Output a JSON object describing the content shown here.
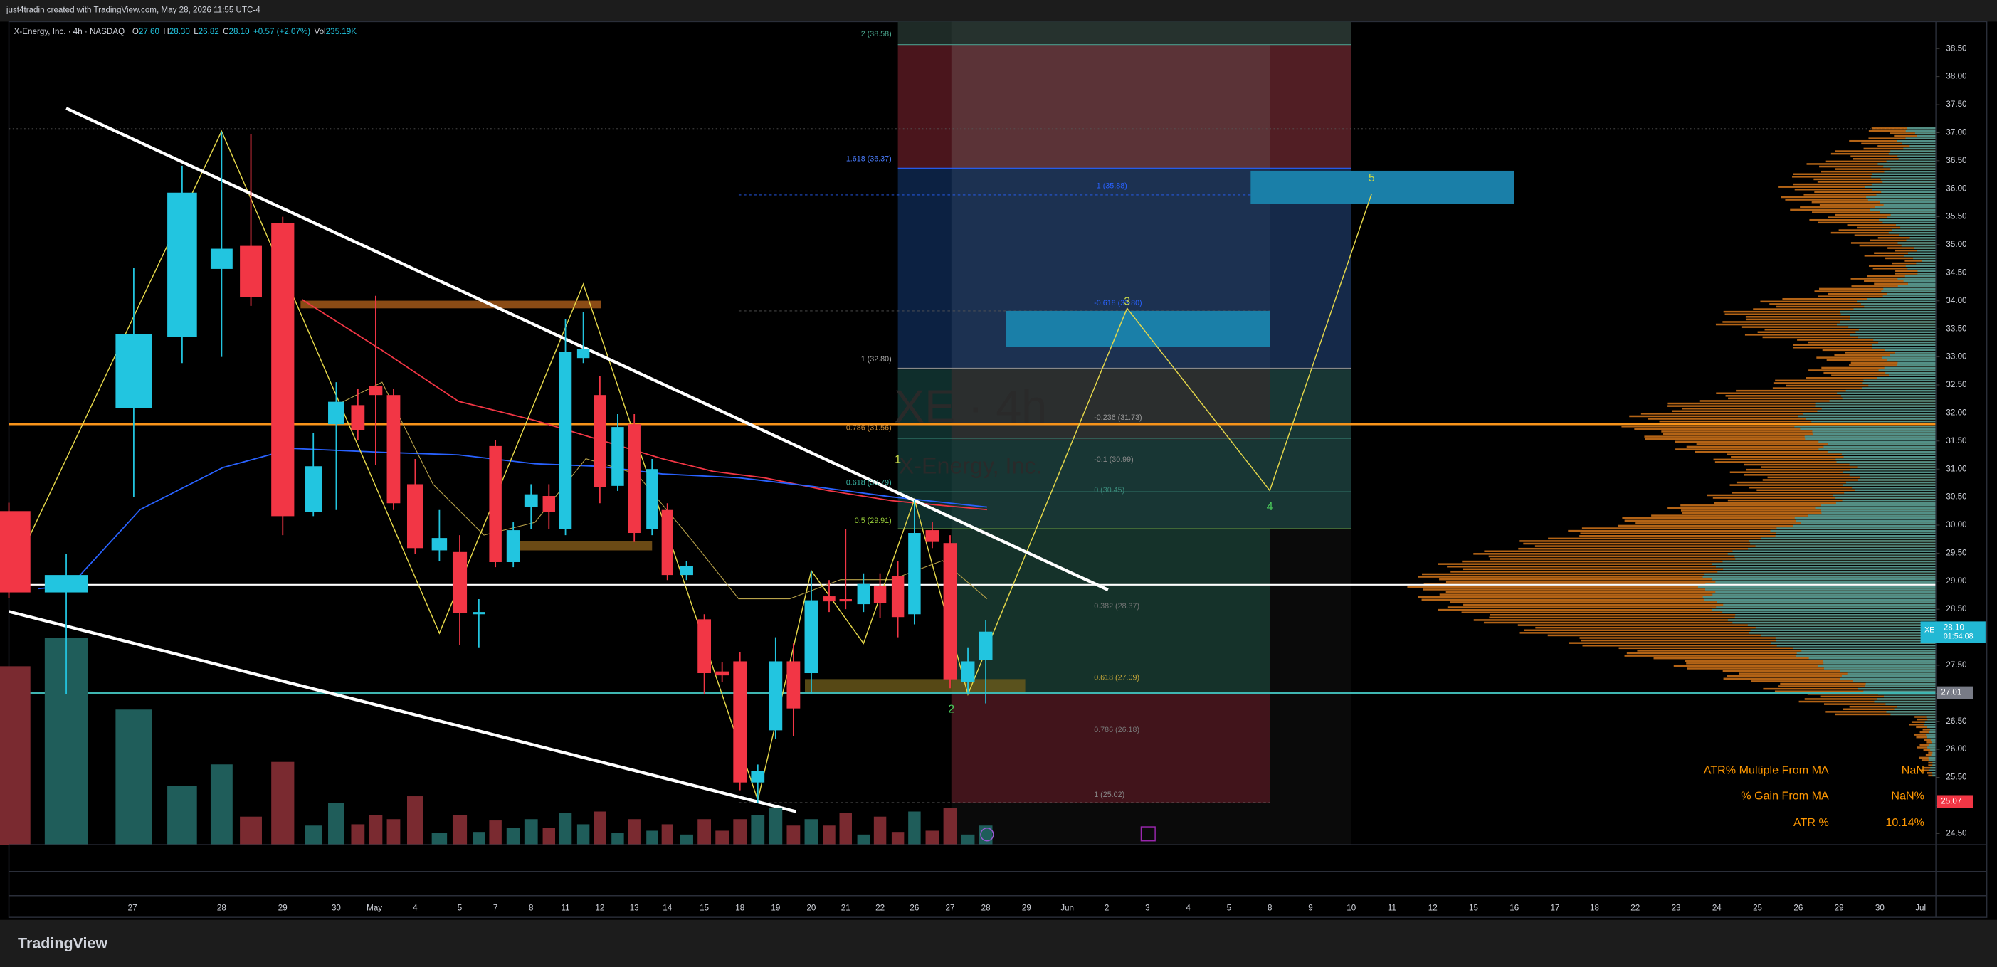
{
  "header": {
    "credit": "just4tradin created with TradingView.com, May 28, 2026 11:55 UTC-4",
    "symbol": "X-Energy, Inc. · 4h · NASDAQ",
    "fields": [
      {
        "label": "O",
        "value": "27.60"
      },
      {
        "label": "H",
        "value": "28.30"
      },
      {
        "label": "L",
        "value": "26.82"
      },
      {
        "label": "C",
        "value": "28.10"
      },
      {
        "label": "",
        "value": "+0.57 (+2.07%)"
      },
      {
        "label": "Vol",
        "value": "235.19K"
      }
    ]
  },
  "watermark": {
    "ticker": "XE · 4h",
    "name": "X-Energy, Inc."
  },
  "chart_data": {
    "type": "candlestick",
    "up_color": "#22c5e0",
    "down_color": "#f23645",
    "volume_up_color": "#1f5d5a",
    "volume_down_color": "#7a2a30",
    "open": [
      30.25,
      28.8,
      32.09,
      33.36,
      34.57,
      34.98,
      35.39,
      30.23,
      31.8,
      32.14,
      32.48,
      32.32,
      30.73,
      29.55,
      29.52,
      28.41,
      31.41,
      29.34,
      30.32,
      30.52,
      29.93,
      32.98,
      32.32,
      30.7,
      31.8,
      29.93,
      30.27,
      29.11,
      28.32,
      27.39,
      27.57,
      25.41,
      26.34,
      27.57,
      27.36,
      28.73,
      28.68,
      28.59,
      28.91,
      29.09,
      28.41,
      29.91,
      29.68,
      27.2,
      27.6
    ],
    "high": [
      30.4,
      29.48,
      34.59,
      36.41,
      37.02,
      36.98,
      35.5,
      31.64,
      32.55,
      32.43,
      34.09,
      32.43,
      31.18,
      30.27,
      29.82,
      28.68,
      31.52,
      30.05,
      30.73,
      30.73,
      33.68,
      33.8,
      32.66,
      31.98,
      31.98,
      31.18,
      30.39,
      29.36,
      28.41,
      27.55,
      27.73,
      25.73,
      28.0,
      27.89,
      29.18,
      29.02,
      29.93,
      29.14,
      29.14,
      29.36,
      30.45,
      30.05,
      29.82,
      27.82,
      28.3
    ],
    "low": [
      28.7,
      26.98,
      30.5,
      32.89,
      33.0,
      33.91,
      29.82,
      30.16,
      30.27,
      31.52,
      31.07,
      30.27,
      29.48,
      29.36,
      27.86,
      27.82,
      29.25,
      29.25,
      29.93,
      29.93,
      29.82,
      32.89,
      30.39,
      30.61,
      29.7,
      29.82,
      29.02,
      29.02,
      26.98,
      27.2,
      25.27,
      25.05,
      26.18,
      26.23,
      26.98,
      28.45,
      28.5,
      28.45,
      28.34,
      28.0,
      28.23,
      29.59,
      27.09,
      26.98,
      26.82
    ],
    "close": [
      28.8,
      29.11,
      33.41,
      35.93,
      34.93,
      34.07,
      30.16,
      31.05,
      32.2,
      31.7,
      32.32,
      30.39,
      29.59,
      29.77,
      28.43,
      28.45,
      29.34,
      29.91,
      30.55,
      30.23,
      33.09,
      33.14,
      30.68,
      31.75,
      29.86,
      31.0,
      29.11,
      29.27,
      27.36,
      27.32,
      25.41,
      25.61,
      27.57,
      26.73,
      28.66,
      28.64,
      28.64,
      28.95,
      28.61,
      28.36,
      29.86,
      29.7,
      27.25,
      27.57,
      28.1
    ],
    "volume": [
      2195,
      2540,
      1662,
      721,
      988,
      345,
      1019,
      235,
      517,
      251,
      361,
      314,
      596,
      141,
      361,
      157,
      298,
      204,
      314,
      204,
      392,
      251,
      408,
      141,
      314,
      172,
      251,
      125,
      314,
      172,
      314,
      361,
      455,
      235,
      314,
      235,
      392,
      125,
      345,
      157,
      408,
      172,
      455,
      125,
      235.19
    ],
    "x_labels": [
      "27",
      "28",
      "29",
      "30",
      "May",
      "4",
      "5",
      "7",
      "8",
      "11",
      "12",
      "13",
      "14",
      "15",
      "18",
      "19",
      "20",
      "21",
      "22",
      "26",
      "27",
      "28",
      "29",
      "Jun",
      "2",
      "3",
      "4",
      "5",
      "8",
      "9",
      "10",
      "11",
      "12",
      "15",
      "16",
      "17",
      "18",
      "22",
      "23",
      "24",
      "25",
      "26",
      "29",
      "30",
      "Jul"
    ],
    "ylim": [
      24.3,
      38.98
    ],
    "yticks": [
      {
        "value": 24.5,
        "label": "24.50"
      },
      {
        "value": 25,
        "label": "25.00"
      },
      {
        "value": 25.5,
        "label": "25.50"
      },
      {
        "value": 26,
        "label": "26.00"
      },
      {
        "value": 26.5,
        "label": "26.50"
      },
      {
        "value": 27,
        "label": "27.00"
      },
      {
        "value": 27.5,
        "label": "27.50"
      },
      {
        "value": 28,
        "label": "28.00"
      },
      {
        "value": 28.5,
        "label": "28.50"
      },
      {
        "value": 29,
        "label": "29.00"
      },
      {
        "value": 29.5,
        "label": "29.50"
      },
      {
        "value": 30,
        "label": "30.00"
      },
      {
        "value": 30.5,
        "label": "30.50"
      },
      {
        "value": 31,
        "label": "31.00"
      },
      {
        "value": 31.5,
        "label": "31.50"
      },
      {
        "value": 32,
        "label": "32.00"
      },
      {
        "value": 32.5,
        "label": "32.50"
      },
      {
        "value": 33,
        "label": "33.00"
      },
      {
        "value": 33.5,
        "label": "33.50"
      },
      {
        "value": 34,
        "label": "34.00"
      },
      {
        "value": 34.5,
        "label": "34.50"
      },
      {
        "value": 35,
        "label": "35.00"
      },
      {
        "value": 35.5,
        "label": "35.50"
      },
      {
        "value": 36,
        "label": "36.00"
      },
      {
        "value": 36.5,
        "label": "36.50"
      },
      {
        "value": 37,
        "label": "37.00"
      },
      {
        "value": 37.5,
        "label": "37.50"
      },
      {
        "value": 38,
        "label": "38.00"
      },
      {
        "value": 38.5,
        "label": "38.50"
      }
    ],
    "grid": false,
    "last_price": {
      "symbol": "XE",
      "price": {
        "value": 28.1,
        "label": "28.10"
      },
      "countdown": "01:54:08"
    },
    "level_labels": [
      {
        "value": 27.01,
        "label": "27.01",
        "color": "#787b86"
      },
      {
        "value": 25.07,
        "label": "25.07",
        "color": "#f23645"
      }
    ],
    "fib_left": [
      "2 (38.58)",
      "1.618 (36.37)",
      "1 (32.80)",
      "0.786 (31.56)",
      "0.618 (30.79)",
      "0.5 (29.91)"
    ],
    "fib_right": [
      "-1 (35.88)",
      "-0.618 (33.80)",
      "-0.236 (31.73)",
      "-0.1 (30.99)",
      "0 (30.45)",
      "0.382 (28.37)",
      "0.618 (27.09)",
      "0.786 (26.18)",
      "1 (25.02)"
    ],
    "waves": [
      "1",
      "2",
      "3",
      "4",
      "5"
    ]
  },
  "table": {
    "rows": [
      [
        "ATR% Multiple From MA",
        "NaN"
      ],
      [
        "% Gain From MA",
        "NaN%"
      ],
      [
        "ATR %",
        "10.14%"
      ]
    ]
  },
  "footer": {
    "brand": "TradingView"
  }
}
